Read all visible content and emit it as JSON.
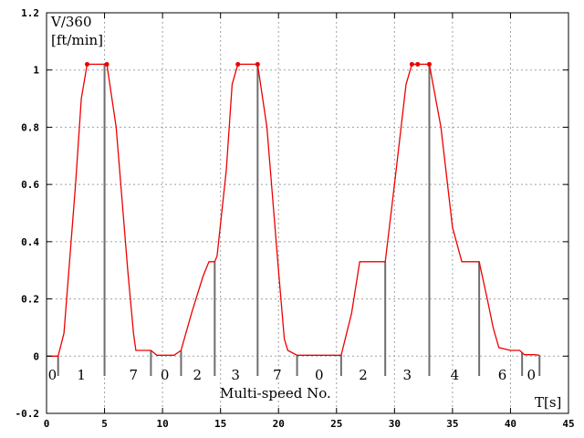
{
  "chart_data": {
    "type": "line",
    "ylabel_line1": "V/360",
    "ylabel_line2": "[ft/min]",
    "xlabel": "T[s]",
    "annotation": "Multi-speed No.",
    "xlim": [
      0,
      45
    ],
    "ylim": [
      -0.2,
      1.2
    ],
    "x_ticks": [
      0,
      5,
      10,
      15,
      20,
      25,
      30,
      35,
      40,
      45
    ],
    "y_ticks": [
      -0.2,
      0,
      0.2,
      0.4,
      0.6,
      0.8,
      1,
      1.2
    ],
    "x_tick_labels": [
      "0",
      "5",
      "10",
      "15",
      "20",
      "25",
      "30",
      "35",
      "40",
      "45"
    ],
    "y_tick_labels": [
      "-0.2",
      "0",
      "0.2",
      "0.4",
      "0.6",
      "0.8",
      "1",
      "1.2"
    ],
    "grid": true,
    "series": [
      {
        "color": "#ee0000",
        "x": [
          0,
          1.0,
          1.5,
          2.5,
          3.0,
          3.5,
          5.2,
          6.0,
          7.0,
          7.5,
          7.7,
          9.0,
          9.5,
          11.0,
          11.6,
          12.5,
          13.5,
          14.0,
          14.5,
          14.7,
          15.5,
          16.0,
          16.5,
          18.2,
          19.0,
          20.0,
          20.5,
          20.8,
          21.6,
          22.5,
          24.0,
          25.4,
          26.3,
          27.0,
          29.2,
          30.0,
          31.0,
          31.5,
          32.0,
          33.0,
          34.0,
          35.0,
          35.8,
          36.2,
          37.3,
          38.0,
          38.5,
          39.0,
          40.0,
          40.8,
          41.2,
          42.0,
          42.5
        ],
        "y": [
          0,
          0,
          0.08,
          0.6,
          0.9,
          1.02,
          1.02,
          0.8,
          0.3,
          0.08,
          0.02,
          0.02,
          0.003,
          0.003,
          0.02,
          0.15,
          0.28,
          0.33,
          0.33,
          0.35,
          0.65,
          0.95,
          1.02,
          1.02,
          0.8,
          0.3,
          0.06,
          0.02,
          0.003,
          0.003,
          0.003,
          0.003,
          0.15,
          0.33,
          0.33,
          0.6,
          0.95,
          1.02,
          1.02,
          1.02,
          0.8,
          0.45,
          0.33,
          0.33,
          0.33,
          0.2,
          0.1,
          0.03,
          0.02,
          0.02,
          0.005,
          0.005,
          0.003
        ]
      }
    ],
    "markers_x": [
      1.0,
      5.0,
      9.0,
      11.6,
      14.5,
      18.2,
      21.6,
      25.4,
      29.2,
      33.0,
      37.3,
      41.0,
      42.5
    ],
    "speed_labels": [
      {
        "text": "0",
        "x": 0.5
      },
      {
        "text": "1",
        "x": 3.0
      },
      {
        "text": "7",
        "x": 7.5
      },
      {
        "text": "0",
        "x": 10.2
      },
      {
        "text": "2",
        "x": 13.0
      },
      {
        "text": "3",
        "x": 16.3
      },
      {
        "text": "7",
        "x": 19.9
      },
      {
        "text": "0",
        "x": 23.5
      },
      {
        "text": "2",
        "x": 27.3
      },
      {
        "text": "3",
        "x": 31.1
      },
      {
        "text": "4",
        "x": 35.2
      },
      {
        "text": "6",
        "x": 39.3
      },
      {
        "text": "0",
        "x": 41.8
      }
    ]
  }
}
